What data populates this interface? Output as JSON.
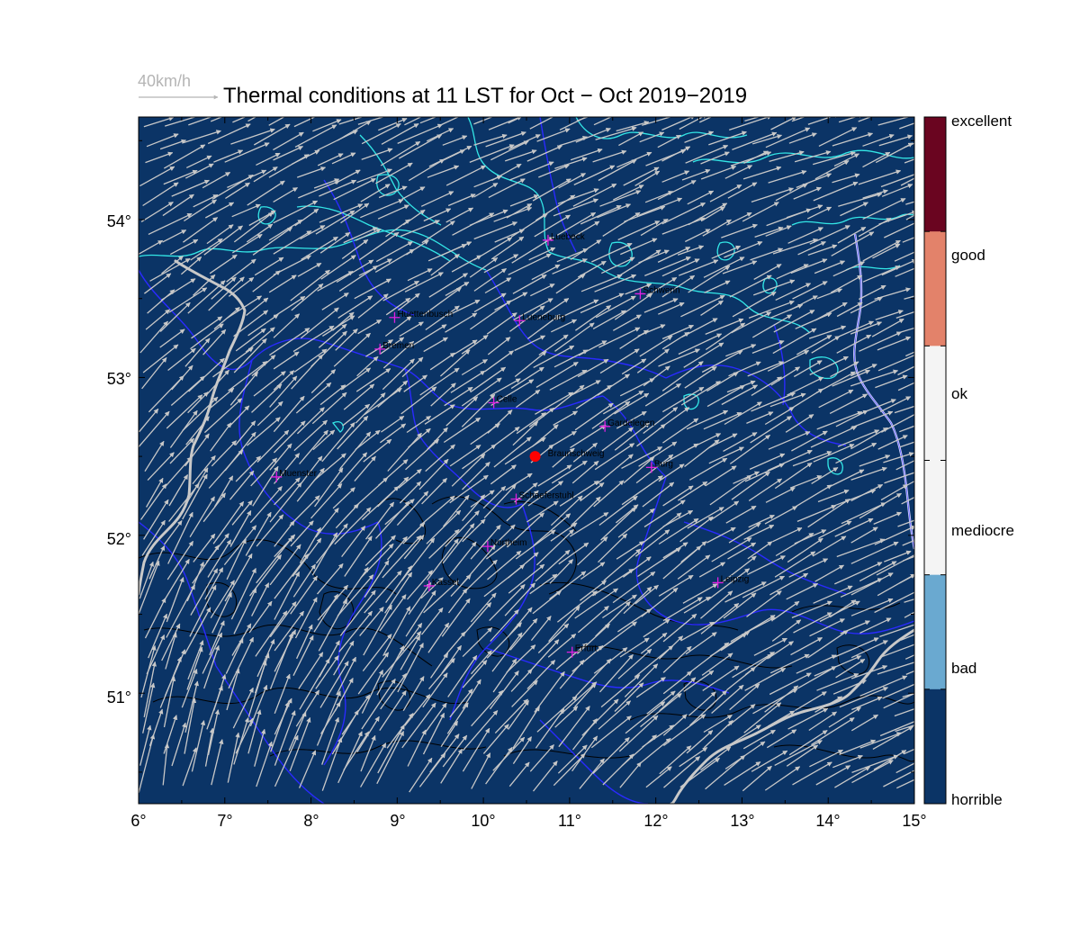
{
  "title": "Thermal conditions at 11 LST for Oct − Oct  2019−2019",
  "wind_reference": {
    "label": "40km/h",
    "color": "#c0c0c0"
  },
  "map": {
    "lon_range": [
      6,
      15
    ],
    "lat_range": [
      50.3,
      54.65
    ],
    "background_color": "#0b3466",
    "coast_color": "#33e6e6",
    "border_color": "#1f1fff",
    "terrain_contour_color": "#000000",
    "arrow_color": "#c8c8c8",
    "x_ticks": [
      "6°",
      "7°",
      "8°",
      "9°",
      "10°",
      "11°",
      "12°",
      "13°",
      "14°",
      "15°"
    ],
    "y_ticks": [
      "51°",
      "52°",
      "53°",
      "54°"
    ]
  },
  "colorbar": {
    "labels": [
      "excellent",
      "good",
      "ok",
      "mediocre",
      "bad",
      "horrible"
    ],
    "colors": [
      "#6a0520",
      "#e3826a",
      "#f4f4f4",
      "#f4f4f4",
      "#6aa9d0",
      "#0b3466"
    ]
  },
  "marker": {
    "name": "Braunschweig",
    "color": "#ff0000"
  },
  "cities": [
    {
      "name": "Luebeck",
      "lon": 10.75,
      "lat": 53.87
    },
    {
      "name": "Schwerin",
      "lon": 11.82,
      "lat": 53.53
    },
    {
      "name": "Huettenbusch",
      "lon": 8.97,
      "lat": 53.38
    },
    {
      "name": "Lueneburg",
      "lon": 10.42,
      "lat": 53.36
    },
    {
      "name": "Bremen",
      "lon": 8.8,
      "lat": 53.18
    },
    {
      "name": "Celle",
      "lon": 10.12,
      "lat": 52.84
    },
    {
      "name": "Gardelegen",
      "lon": 11.41,
      "lat": 52.69
    },
    {
      "name": "Braunschweig",
      "lon": 10.6,
      "lat": 52.5
    },
    {
      "name": "Burg",
      "lon": 11.95,
      "lat": 52.43
    },
    {
      "name": "Muenster",
      "lon": 7.6,
      "lat": 52.37
    },
    {
      "name": "Schaeferstuhl",
      "lon": 10.38,
      "lat": 52.23
    },
    {
      "name": "Northeim",
      "lon": 10.05,
      "lat": 51.93
    },
    {
      "name": "Leipzig",
      "lon": 12.72,
      "lat": 51.7
    },
    {
      "name": "Kassel",
      "lon": 9.37,
      "lat": 51.68
    },
    {
      "name": "Erfurt",
      "lon": 11.03,
      "lat": 51.26
    }
  ]
}
